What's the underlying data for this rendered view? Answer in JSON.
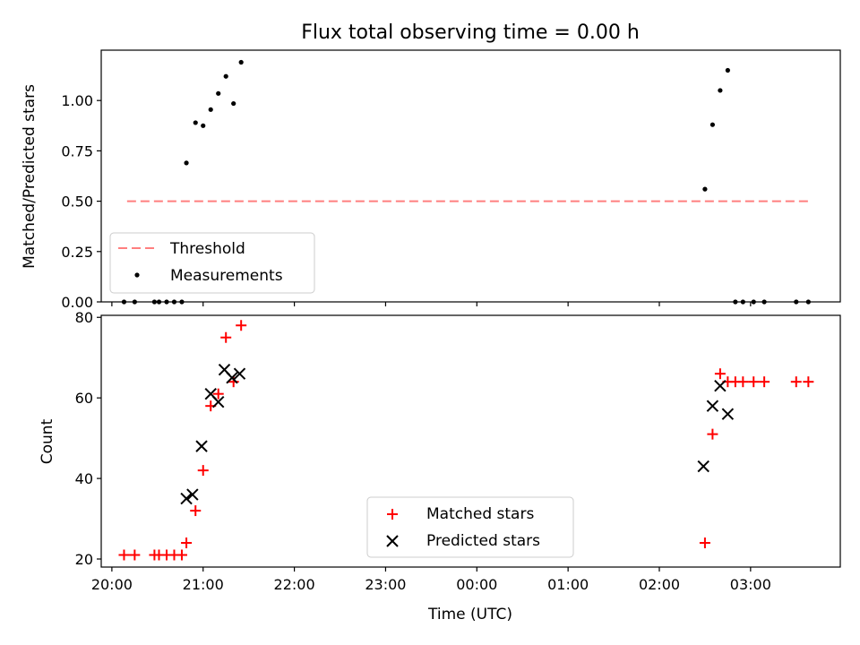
{
  "title": "Flux total observing time = 0.00 h",
  "chart_data": [
    {
      "type": "scatter",
      "ylabel": "Matched/Predicted stars",
      "ylim": [
        0,
        1.25
      ],
      "yticks": [
        0.0,
        0.25,
        0.5,
        0.75,
        1.0
      ],
      "ytick_labels": [
        "0.00",
        "0.25",
        "0.50",
        "0.75",
        "1.00"
      ],
      "x_tick_labels_shown": false,
      "legend_position": "lower-left",
      "threshold": {
        "name": "Threshold",
        "value": 0.5,
        "x_start": "20:10",
        "x_end": "03:38",
        "color": "#ff7f7f"
      },
      "series": [
        {
          "name": "Measurements",
          "color": "#000000",
          "marker": "dot",
          "points": [
            [
              "20:08",
              0.0
            ],
            [
              "20:15",
              0.0
            ],
            [
              "20:28",
              0.0
            ],
            [
              "20:31",
              0.0
            ],
            [
              "20:36",
              0.0
            ],
            [
              "20:41",
              0.0
            ],
            [
              "20:46",
              0.0
            ],
            [
              "20:49",
              0.69
            ],
            [
              "20:55",
              0.89
            ],
            [
              "21:00",
              0.875
            ],
            [
              "21:05",
              0.955
            ],
            [
              "21:10",
              1.035
            ],
            [
              "21:15",
              1.12
            ],
            [
              "21:20",
              0.985
            ],
            [
              "21:25",
              1.19
            ],
            [
              "02:30",
              0.56
            ],
            [
              "02:35",
              0.88
            ],
            [
              "02:40",
              1.05
            ],
            [
              "02:45",
              1.15
            ],
            [
              "02:50",
              0.0
            ],
            [
              "02:55",
              0.0
            ],
            [
              "03:02",
              0.0
            ],
            [
              "03:09",
              0.0
            ],
            [
              "03:30",
              0.0
            ],
            [
              "03:38",
              0.0
            ]
          ]
        }
      ]
    },
    {
      "type": "scatter",
      "xlabel": "Time (UTC)",
      "ylabel": "Count",
      "ylim": [
        18,
        80.5
      ],
      "yticks": [
        20,
        40,
        60,
        80
      ],
      "ytick_labels": [
        "20",
        "40",
        "60",
        "80"
      ],
      "xticks": [
        "20:00",
        "21:00",
        "22:00",
        "23:00",
        "00:00",
        "01:00",
        "02:00",
        "03:00"
      ],
      "xlim": [
        "19:53",
        "03:59"
      ],
      "legend_position": "lower-center",
      "series": [
        {
          "name": "Matched stars",
          "color": "#ff0000",
          "marker": "plus",
          "points": [
            [
              "20:08",
              21
            ],
            [
              "20:15",
              21
            ],
            [
              "20:28",
              21
            ],
            [
              "20:31",
              21
            ],
            [
              "20:36",
              21
            ],
            [
              "20:41",
              21
            ],
            [
              "20:46",
              21
            ],
            [
              "20:49",
              24
            ],
            [
              "20:55",
              32
            ],
            [
              "21:00",
              42
            ],
            [
              "21:05",
              58
            ],
            [
              "21:10",
              61
            ],
            [
              "21:15",
              75
            ],
            [
              "21:20",
              64
            ],
            [
              "21:25",
              78
            ],
            [
              "02:30",
              24
            ],
            [
              "02:35",
              51
            ],
            [
              "02:40",
              66
            ],
            [
              "02:45",
              64
            ],
            [
              "02:50",
              64
            ],
            [
              "02:55",
              64
            ],
            [
              "03:02",
              64
            ],
            [
              "03:09",
              64
            ],
            [
              "03:30",
              64
            ],
            [
              "03:38",
              64
            ]
          ]
        },
        {
          "name": "Predicted stars",
          "color": "#000000",
          "marker": "x",
          "points": [
            [
              "20:49",
              35
            ],
            [
              "20:53",
              36
            ],
            [
              "20:59",
              48
            ],
            [
              "21:05",
              61
            ],
            [
              "21:10",
              59
            ],
            [
              "21:14",
              67
            ],
            [
              "21:19",
              65
            ],
            [
              "21:24",
              66
            ],
            [
              "02:29",
              43
            ],
            [
              "02:35",
              58
            ],
            [
              "02:40",
              63
            ],
            [
              "02:45",
              56
            ]
          ]
        }
      ]
    }
  ]
}
